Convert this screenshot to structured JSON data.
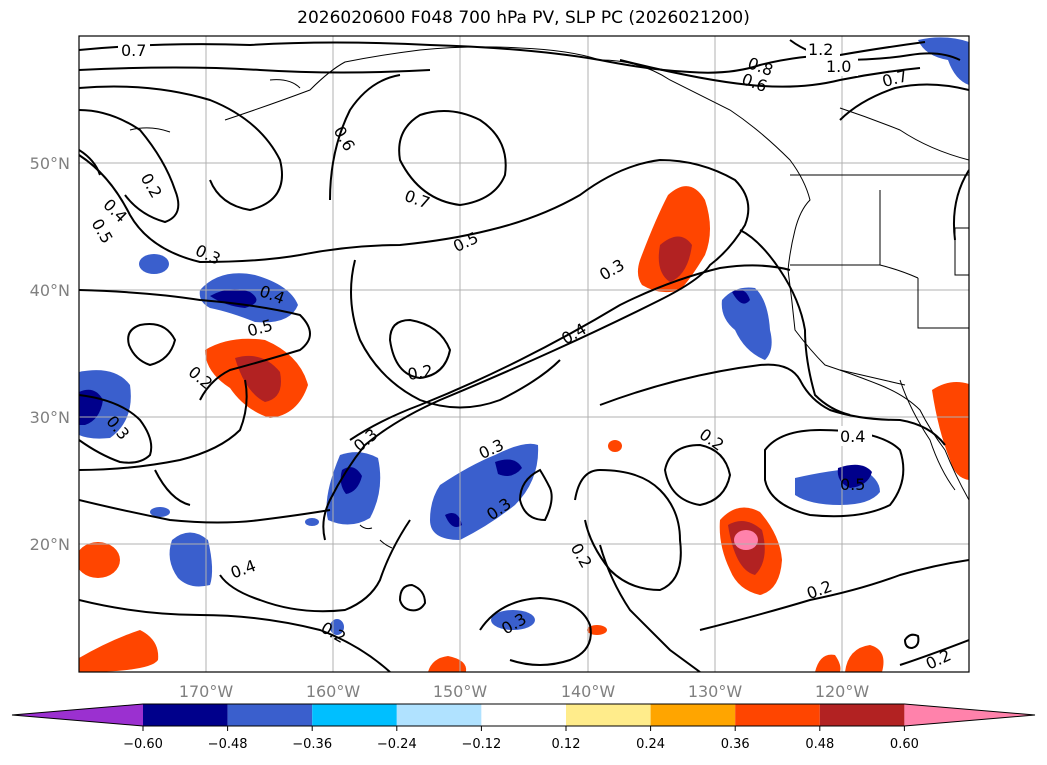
{
  "title": "2026020600 F048 700 hPa PV, SLP PC (2026021200)",
  "axes": {
    "lat_labels": [
      "50°N",
      "40°N",
      "30°N",
      "20°N"
    ],
    "lon_labels": [
      "170°W",
      "160°W",
      "150°W",
      "140°W",
      "130°W",
      "120°W"
    ]
  },
  "contour_labels": [
    "0.7",
    "1.2",
    "1.0",
    "0.8",
    "0.6",
    "0.7",
    "0.6",
    "0.2",
    "0.4",
    "0.5",
    "0.7",
    "0.5",
    "0.3",
    "0.3",
    "0.4",
    "0.5",
    "0.4",
    "0.2",
    "0.2",
    "0.3",
    "0.3",
    "0.3",
    "0.3",
    "0.2",
    "0.4",
    "0.5",
    "0.4",
    "0.2",
    "0.2",
    "0.3",
    "0.2",
    "0.2"
  ],
  "colorbar": {
    "colors": [
      "#9b30d0",
      "#00008b",
      "#3a5fcd",
      "#00bfff",
      "#b0e2ff",
      "#ffffff",
      "#ffec8b",
      "#ffa500",
      "#ff4500",
      "#b22222",
      "#ff82ab"
    ],
    "ticks": [
      "−0.60",
      "−0.48",
      "−0.36",
      "−0.24",
      "−0.12",
      "0.12",
      "0.24",
      "0.36",
      "0.48",
      "0.60"
    ]
  }
}
